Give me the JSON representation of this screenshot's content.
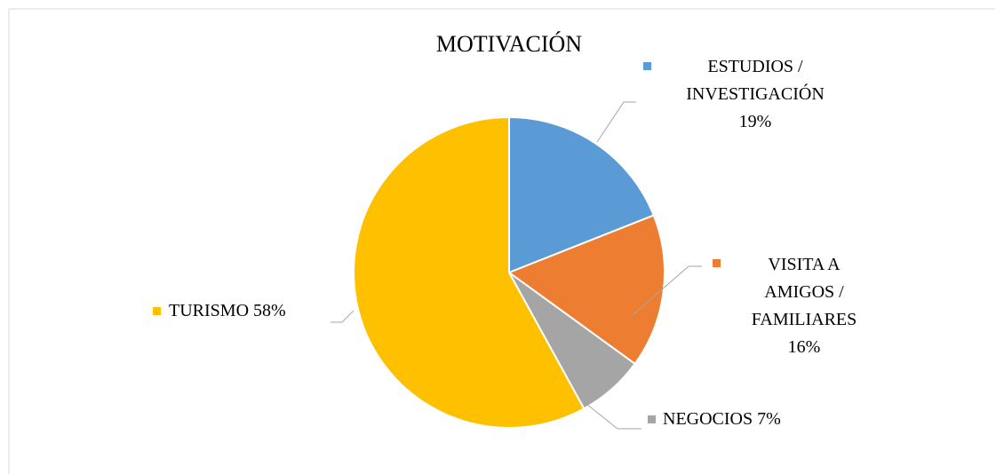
{
  "chart_data": {
    "type": "pie",
    "title": "MOTIVACIÓN",
    "categories": [
      "ESTUDIOS / INVESTIGACIÓN",
      "VISITA A AMIGOS / FAMILIARES",
      "NEGOCIOS",
      "TURISMO"
    ],
    "values": [
      19,
      16,
      7,
      58
    ],
    "value_labels": [
      "19%",
      "16%",
      "7%",
      "58%"
    ],
    "colors": [
      "#5b9bd5",
      "#ed7d31",
      "#a5a5a5",
      "#ffc000"
    ]
  }
}
